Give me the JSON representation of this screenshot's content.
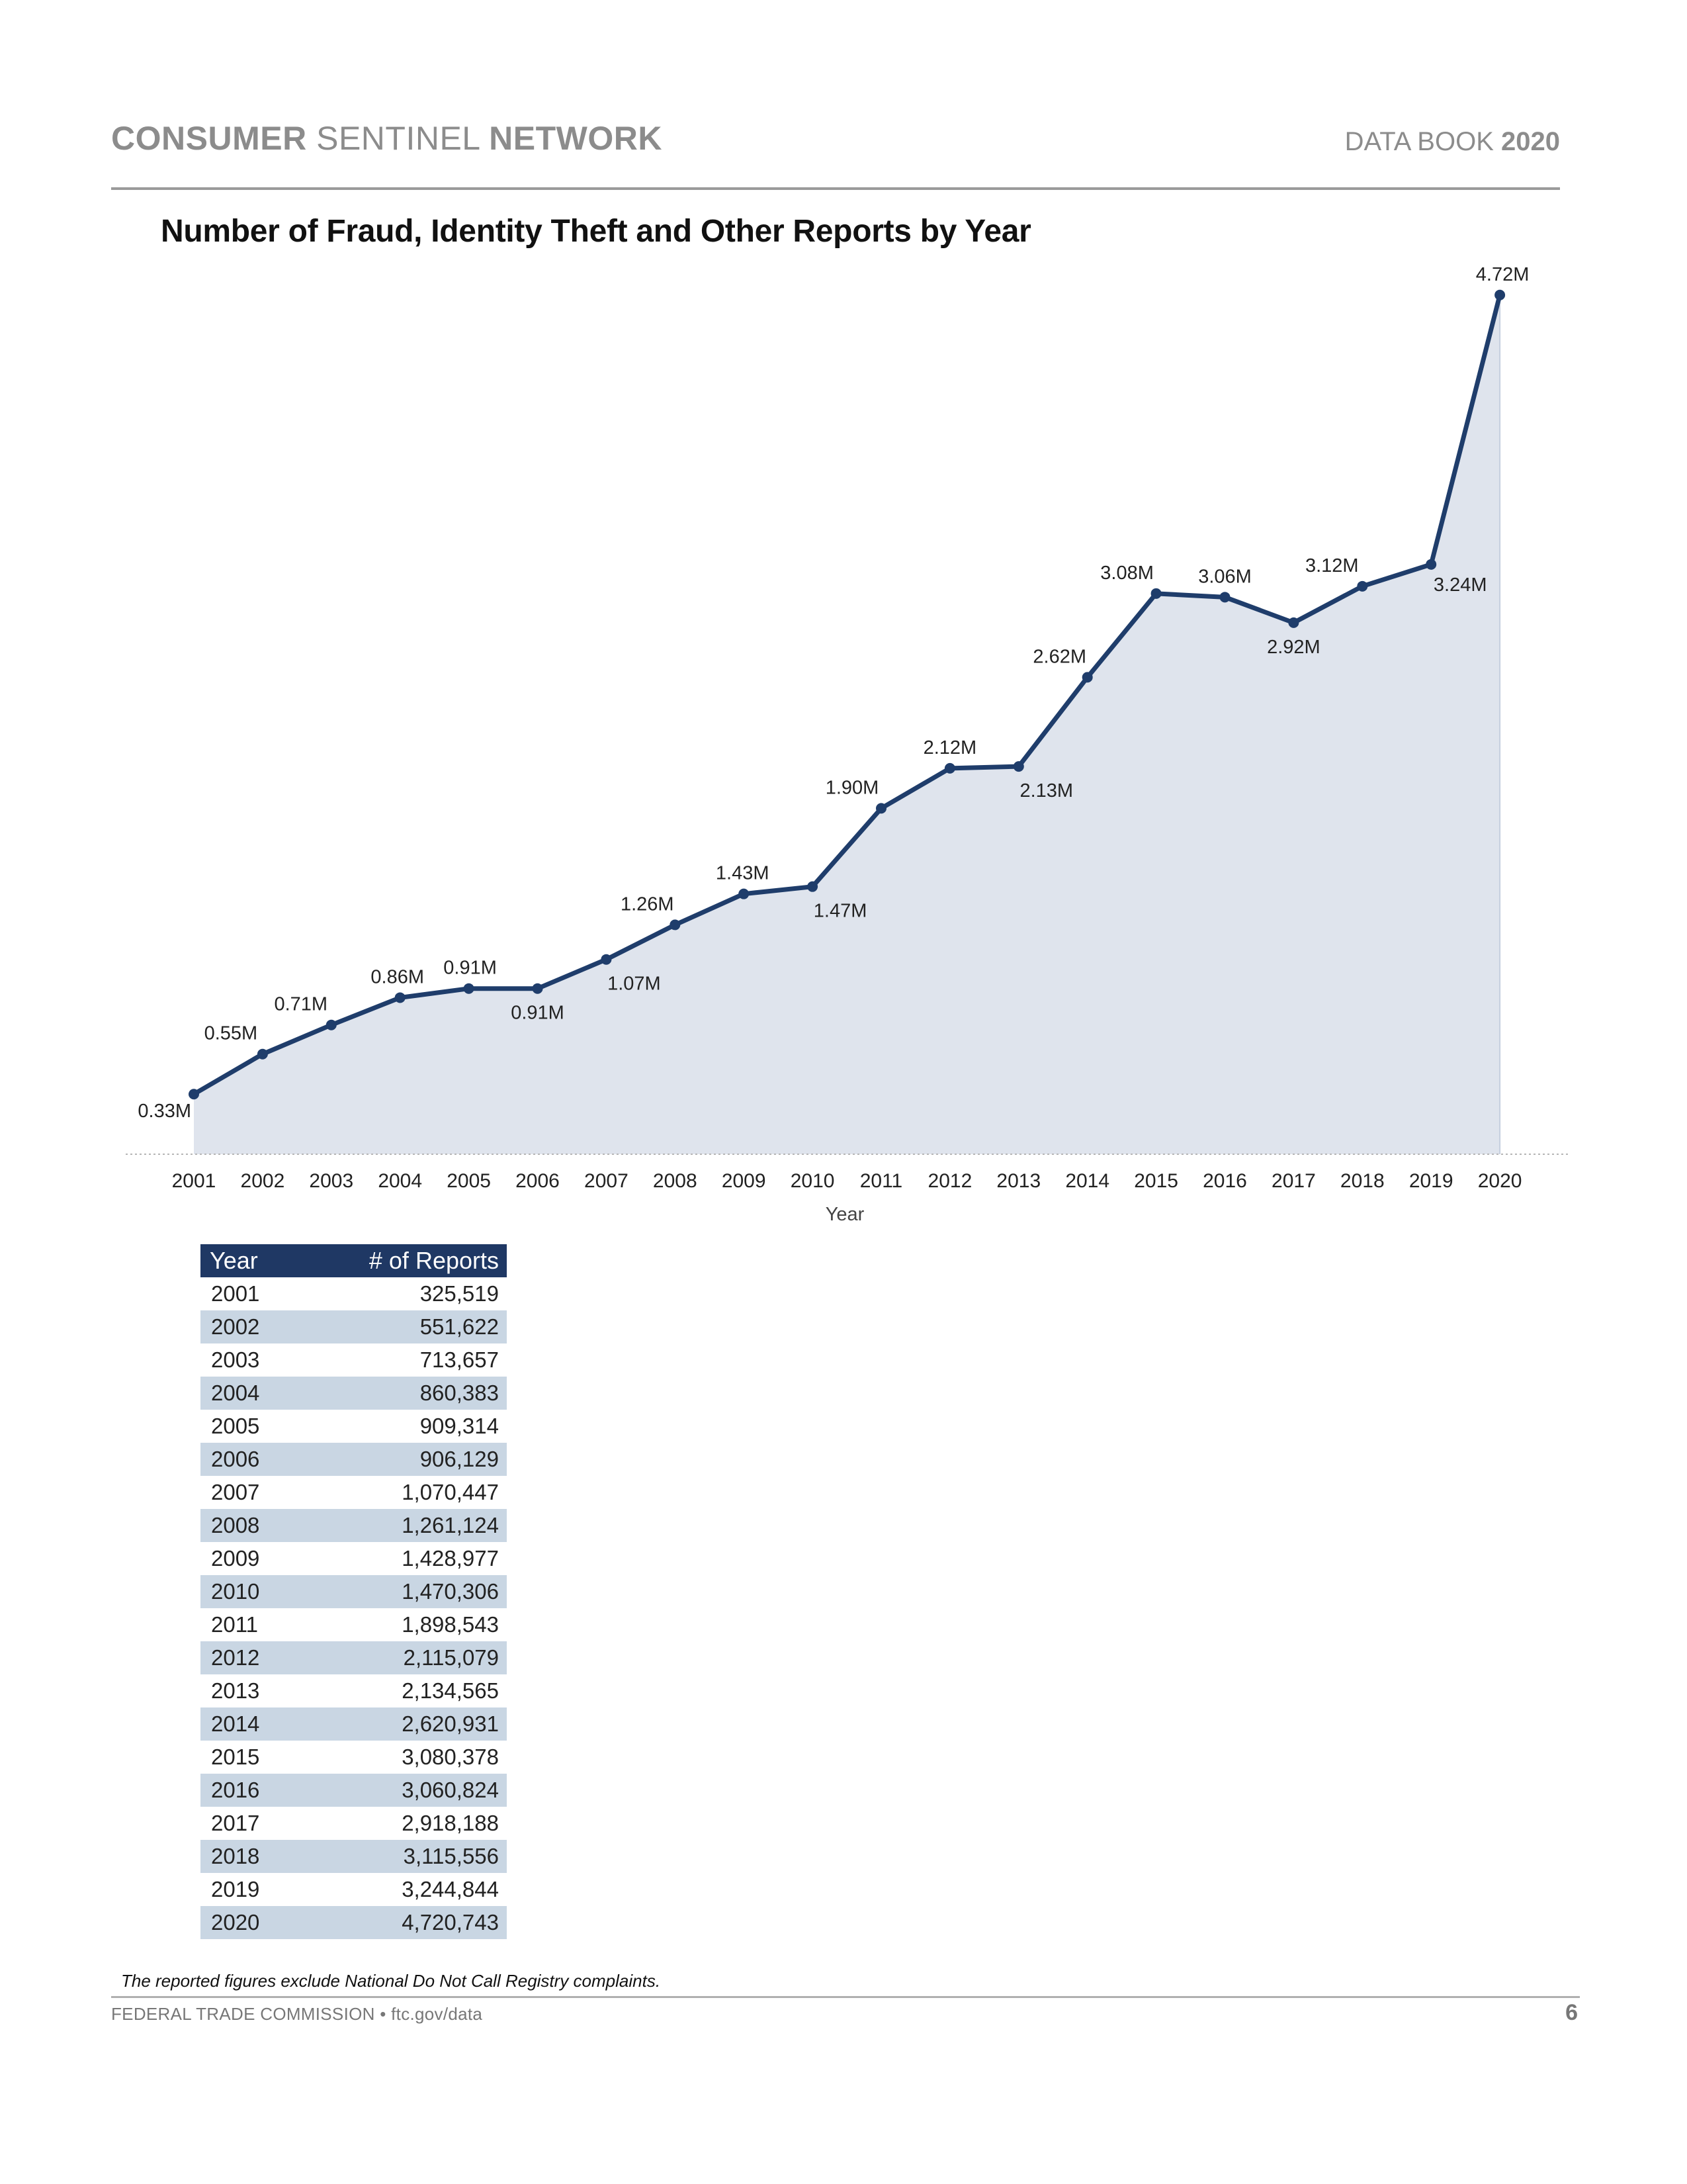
{
  "header": {
    "brand_part1": "CONSUMER",
    "brand_part2": "SENTINEL",
    "brand_part3": "NETWORK",
    "book_label": "DATA BOOK",
    "book_year": "2020"
  },
  "colors": {
    "line": "#1f3d6b",
    "area": "#dfe4ed",
    "header_gray": "#8c8c8c",
    "table_header": "#1f3864",
    "table_alt_row": "#c9d6e3"
  },
  "chart_data": {
    "type": "area",
    "title": "Number of Fraud, Identity Theft and Other Reports by Year",
    "xlabel": "Year",
    "ylabel": "",
    "categories": [
      "2001",
      "2002",
      "2003",
      "2004",
      "2005",
      "2006",
      "2007",
      "2008",
      "2009",
      "2010",
      "2011",
      "2012",
      "2013",
      "2014",
      "2015",
      "2016",
      "2017",
      "2018",
      "2019",
      "2020"
    ],
    "values": [
      0.33,
      0.55,
      0.71,
      0.86,
      0.91,
      0.91,
      1.07,
      1.26,
      1.43,
      1.47,
      1.9,
      2.12,
      2.13,
      2.62,
      3.08,
      3.06,
      2.92,
      3.12,
      3.24,
      4.72
    ],
    "data_labels": [
      "0.33M",
      "0.55M",
      "0.71M",
      "0.86M",
      "0.91M",
      "0.91M",
      "1.07M",
      "1.26M",
      "1.43M",
      "1.47M",
      "1.90M",
      "2.12M",
      "2.13M",
      "2.62M",
      "3.08M",
      "3.06M",
      "2.92M",
      "3.12M",
      "3.24M",
      "4.72M"
    ],
    "ylim": [
      0,
      4.85
    ],
    "grid": false,
    "legend": "none"
  },
  "table": {
    "headers": [
      "Year",
      "# of Reports"
    ],
    "rows": [
      [
        "2001",
        "325,519"
      ],
      [
        "2002",
        "551,622"
      ],
      [
        "2003",
        "713,657"
      ],
      [
        "2004",
        "860,383"
      ],
      [
        "2005",
        "909,314"
      ],
      [
        "2006",
        "906,129"
      ],
      [
        "2007",
        "1,070,447"
      ],
      [
        "2008",
        "1,261,124"
      ],
      [
        "2009",
        "1,428,977"
      ],
      [
        "2010",
        "1,470,306"
      ],
      [
        "2011",
        "1,898,543"
      ],
      [
        "2012",
        "2,115,079"
      ],
      [
        "2013",
        "2,134,565"
      ],
      [
        "2014",
        "2,620,931"
      ],
      [
        "2015",
        "3,080,378"
      ],
      [
        "2016",
        "3,060,824"
      ],
      [
        "2017",
        "2,918,188"
      ],
      [
        "2018",
        "3,115,556"
      ],
      [
        "2019",
        "3,244,844"
      ],
      [
        "2020",
        "4,720,743"
      ]
    ]
  },
  "footnote": "The reported figures exclude National Do Not Call Registry complaints.",
  "footer": {
    "left": "FEDERAL TRADE COMMISSION • ftc.gov/data",
    "page_number": "6"
  }
}
